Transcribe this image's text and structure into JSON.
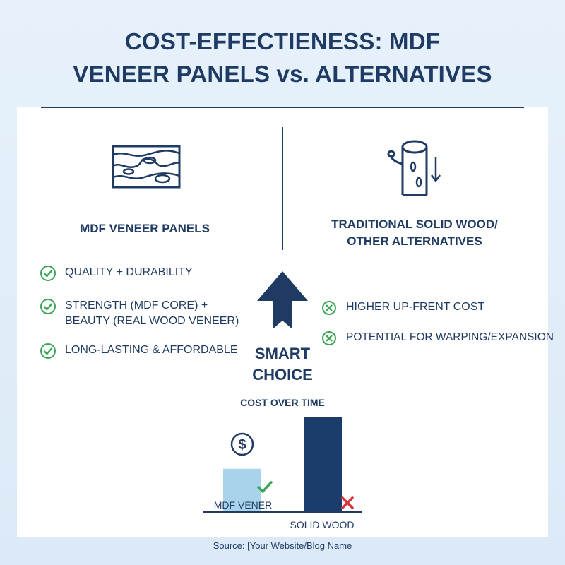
{
  "title": {
    "line1": "COST-EFFECTIENESS: MDF",
    "line2": "VENEER PANELS vs. ALTERNATIVES"
  },
  "left": {
    "heading": "MDF VENEER PANELS",
    "icon": "wood-grain-panel-icon",
    "items": [
      {
        "icon": "check-circle-icon",
        "text": "QUALITY + DURABILITY"
      },
      {
        "icon": "check-circle-icon",
        "text": "STRENGTH (MDF CORE) + BEAUTY (REAL WOOD VENEER)"
      },
      {
        "icon": "check-circle-icon",
        "text": "LONG-LASTING & AFFORDABLE"
      }
    ]
  },
  "right": {
    "heading": "TRADITIONAL SOLID WOOD/ OTHER ALTERNATIVES",
    "icon": "tree-log-icon",
    "items": [
      {
        "icon": "x-circle-icon",
        "text": "HIGHER UP-FRENT COST"
      },
      {
        "icon": "x-circle-icon",
        "text": "POTENTIAL FOR WARPING/EXPANSION"
      }
    ]
  },
  "center": {
    "arrow_icon": "up-arrow-icon",
    "label_line1": "SMART",
    "label_line2": "CHOICE"
  },
  "chart_data": {
    "type": "bar",
    "title": "COST OVER TIME",
    "categories": [
      "MDF VENER",
      "SOLID WOOD"
    ],
    "values": [
      0.45,
      1.0
    ],
    "ylim": [
      0,
      1
    ],
    "grid": false,
    "colors": [
      "#a9d3ea",
      "#1a3d6b"
    ],
    "markers": [
      "check-icon",
      "x-icon"
    ],
    "extra_icon": "dollar-coin-icon"
  },
  "colors": {
    "navy": "#1f3b63",
    "green": "#3aa655",
    "red": "#d9343c",
    "light_blue": "#a9d3ea",
    "dark_blue": "#1a3d6b",
    "background": "#e3effa"
  },
  "source": "Source: [Your Website/Blog Name"
}
